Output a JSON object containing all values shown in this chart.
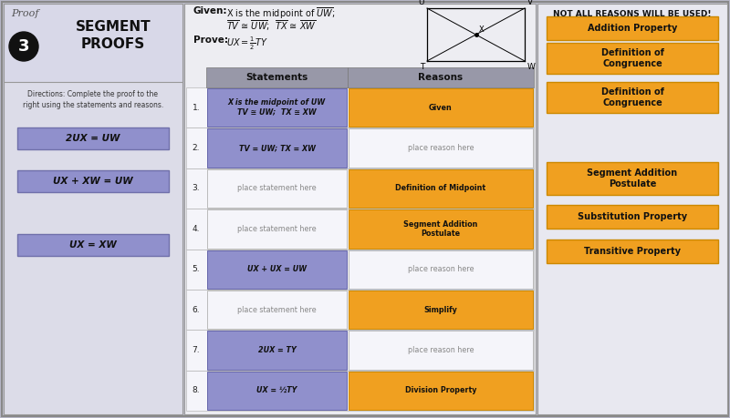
{
  "bg_color": "#b8b8c8",
  "left_panel_color": "#dcdce8",
  "title_bg": "#dcdce8",
  "header_color": "#9898a8",
  "table_bg": "#f0f0f4",
  "right_panel_color": "#e8e8f0",
  "filled_stmt_color": "#9090cc",
  "filled_rsn_color": "#f0a020",
  "unfilled_text_color": "#888888",
  "filled_text_color": "#111111",
  "rows": [
    {
      "num": "1.",
      "stmt": "X is the midpoint of UW\nTV ≅ UW;  TX ≅ XW",
      "stmt_filled": true,
      "rsn": "Given",
      "rsn_filled": true
    },
    {
      "num": "2.",
      "stmt": "TV = UW; TX = XW",
      "stmt_filled": true,
      "rsn": "place reason here",
      "rsn_filled": false
    },
    {
      "num": "3.",
      "stmt": "place statement here",
      "stmt_filled": false,
      "rsn": "Definition of Midpoint",
      "rsn_filled": true
    },
    {
      "num": "4.",
      "stmt": "place statement here",
      "stmt_filled": false,
      "rsn": "Segment Addition\nPostulate",
      "rsn_filled": true
    },
    {
      "num": "5.",
      "stmt": "UX + UX = UW",
      "stmt_filled": true,
      "rsn": "place reason here",
      "rsn_filled": false
    },
    {
      "num": "6.",
      "stmt": "place statement here",
      "stmt_filled": false,
      "rsn": "Simplify",
      "rsn_filled": true
    },
    {
      "num": "7.",
      "stmt": "2UX = TY",
      "stmt_filled": true,
      "rsn": "place reason here",
      "rsn_filled": false
    },
    {
      "num": "8.",
      "stmt": "UX = ½TY",
      "stmt_filled": true,
      "rsn": "Division Property",
      "rsn_filled": true
    }
  ],
  "left_boxes": [
    "2UX = UW",
    "UX + XW = UW",
    "UX = XW"
  ],
  "right_boxes_top": [
    "Addition Property",
    "Definition of\nCongruence",
    "Definition of\nCongruence"
  ],
  "right_boxes_bot": [
    "Segment Addition\nPostulate",
    "Substitution Property",
    "Transitive Property"
  ],
  "not_all_text": "NOT ALL REASONS WILL BE USED!"
}
